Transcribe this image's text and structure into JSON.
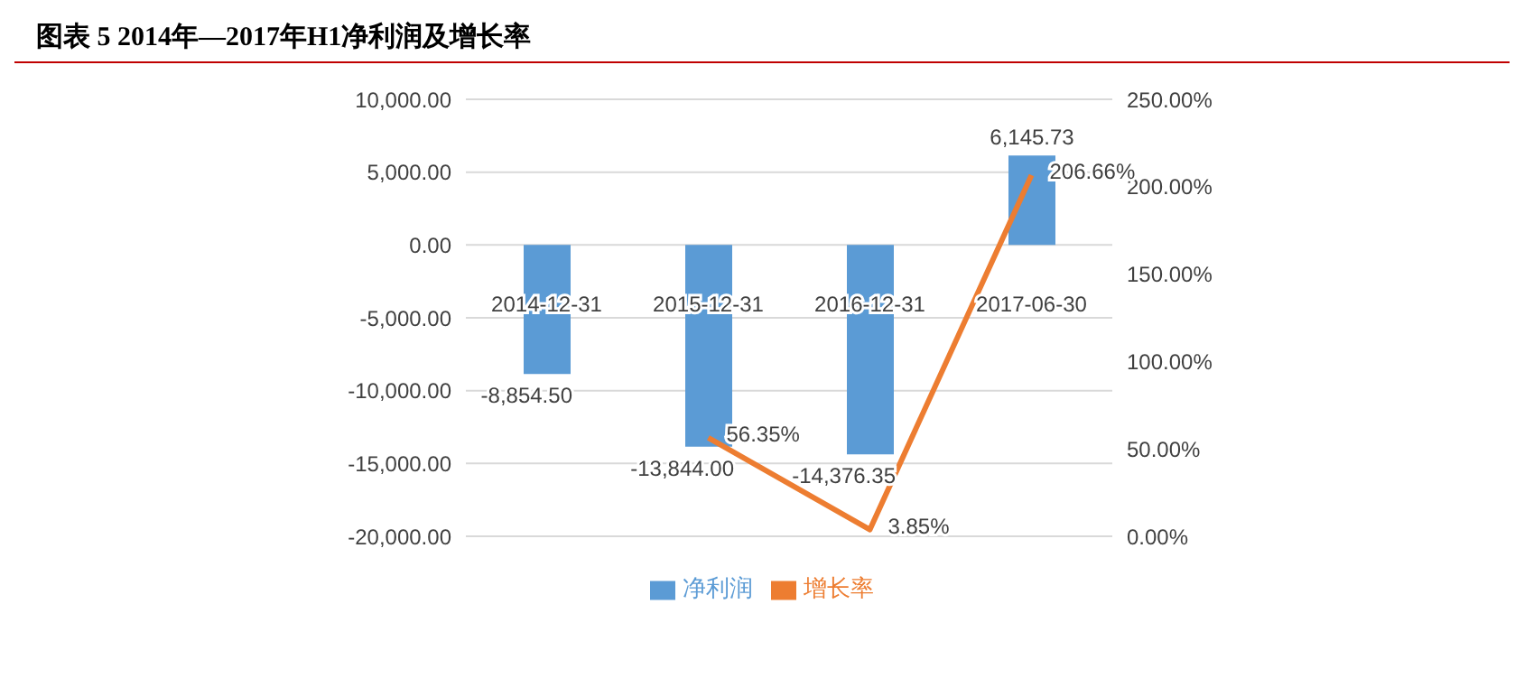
{
  "chart_data": {
    "type": "bar",
    "title": "图表 5 2014年—2017年H1净利润及增长率",
    "categories": [
      "2014-12-31",
      "2015-12-31",
      "2016-12-31",
      "2017-06-30"
    ],
    "series": [
      {
        "name": "净利润",
        "color": "#5b9bd5",
        "values": [
          -8854.5,
          -13844,
          -14376.35,
          6145.73
        ],
        "value_labels": [
          "-8,854.50",
          "-13,844.00",
          "-14,376.35",
          "6,145.73"
        ]
      },
      {
        "name": "增长率",
        "type": "line",
        "axis": "y2",
        "color": "#ed7d31",
        "values": [
          null,
          56.35,
          3.85,
          206.66
        ],
        "value_labels": [
          null,
          "56.35%",
          "3.85%",
          "206.66%"
        ]
      }
    ],
    "ylim": [
      -20000,
      10000
    ],
    "yticks": [
      {
        "value": -20000,
        "label": "-20,000.00"
      },
      {
        "value": -15000,
        "label": "-15,000.00"
      },
      {
        "value": -10000,
        "label": "-10,000.00"
      },
      {
        "value": -5000,
        "label": "-5,000.00"
      },
      {
        "value": 0,
        "label": "0.00"
      },
      {
        "value": 5000,
        "label": "5,000.00"
      },
      {
        "value": 10000,
        "label": "10,000.00"
      }
    ],
    "y2lim": [
      0,
      250
    ],
    "y2ticks": [
      {
        "value": 0,
        "label": "0.00%"
      },
      {
        "value": 50,
        "label": "50.00%"
      },
      {
        "value": 100,
        "label": "100.00%"
      },
      {
        "value": 150,
        "label": "150.00%"
      },
      {
        "value": 200,
        "label": "200.00%"
      },
      {
        "value": 250,
        "label": "250.00%"
      }
    ],
    "grid": "y",
    "legend": "bottom",
    "marker": "none",
    "line_style": "solid"
  }
}
